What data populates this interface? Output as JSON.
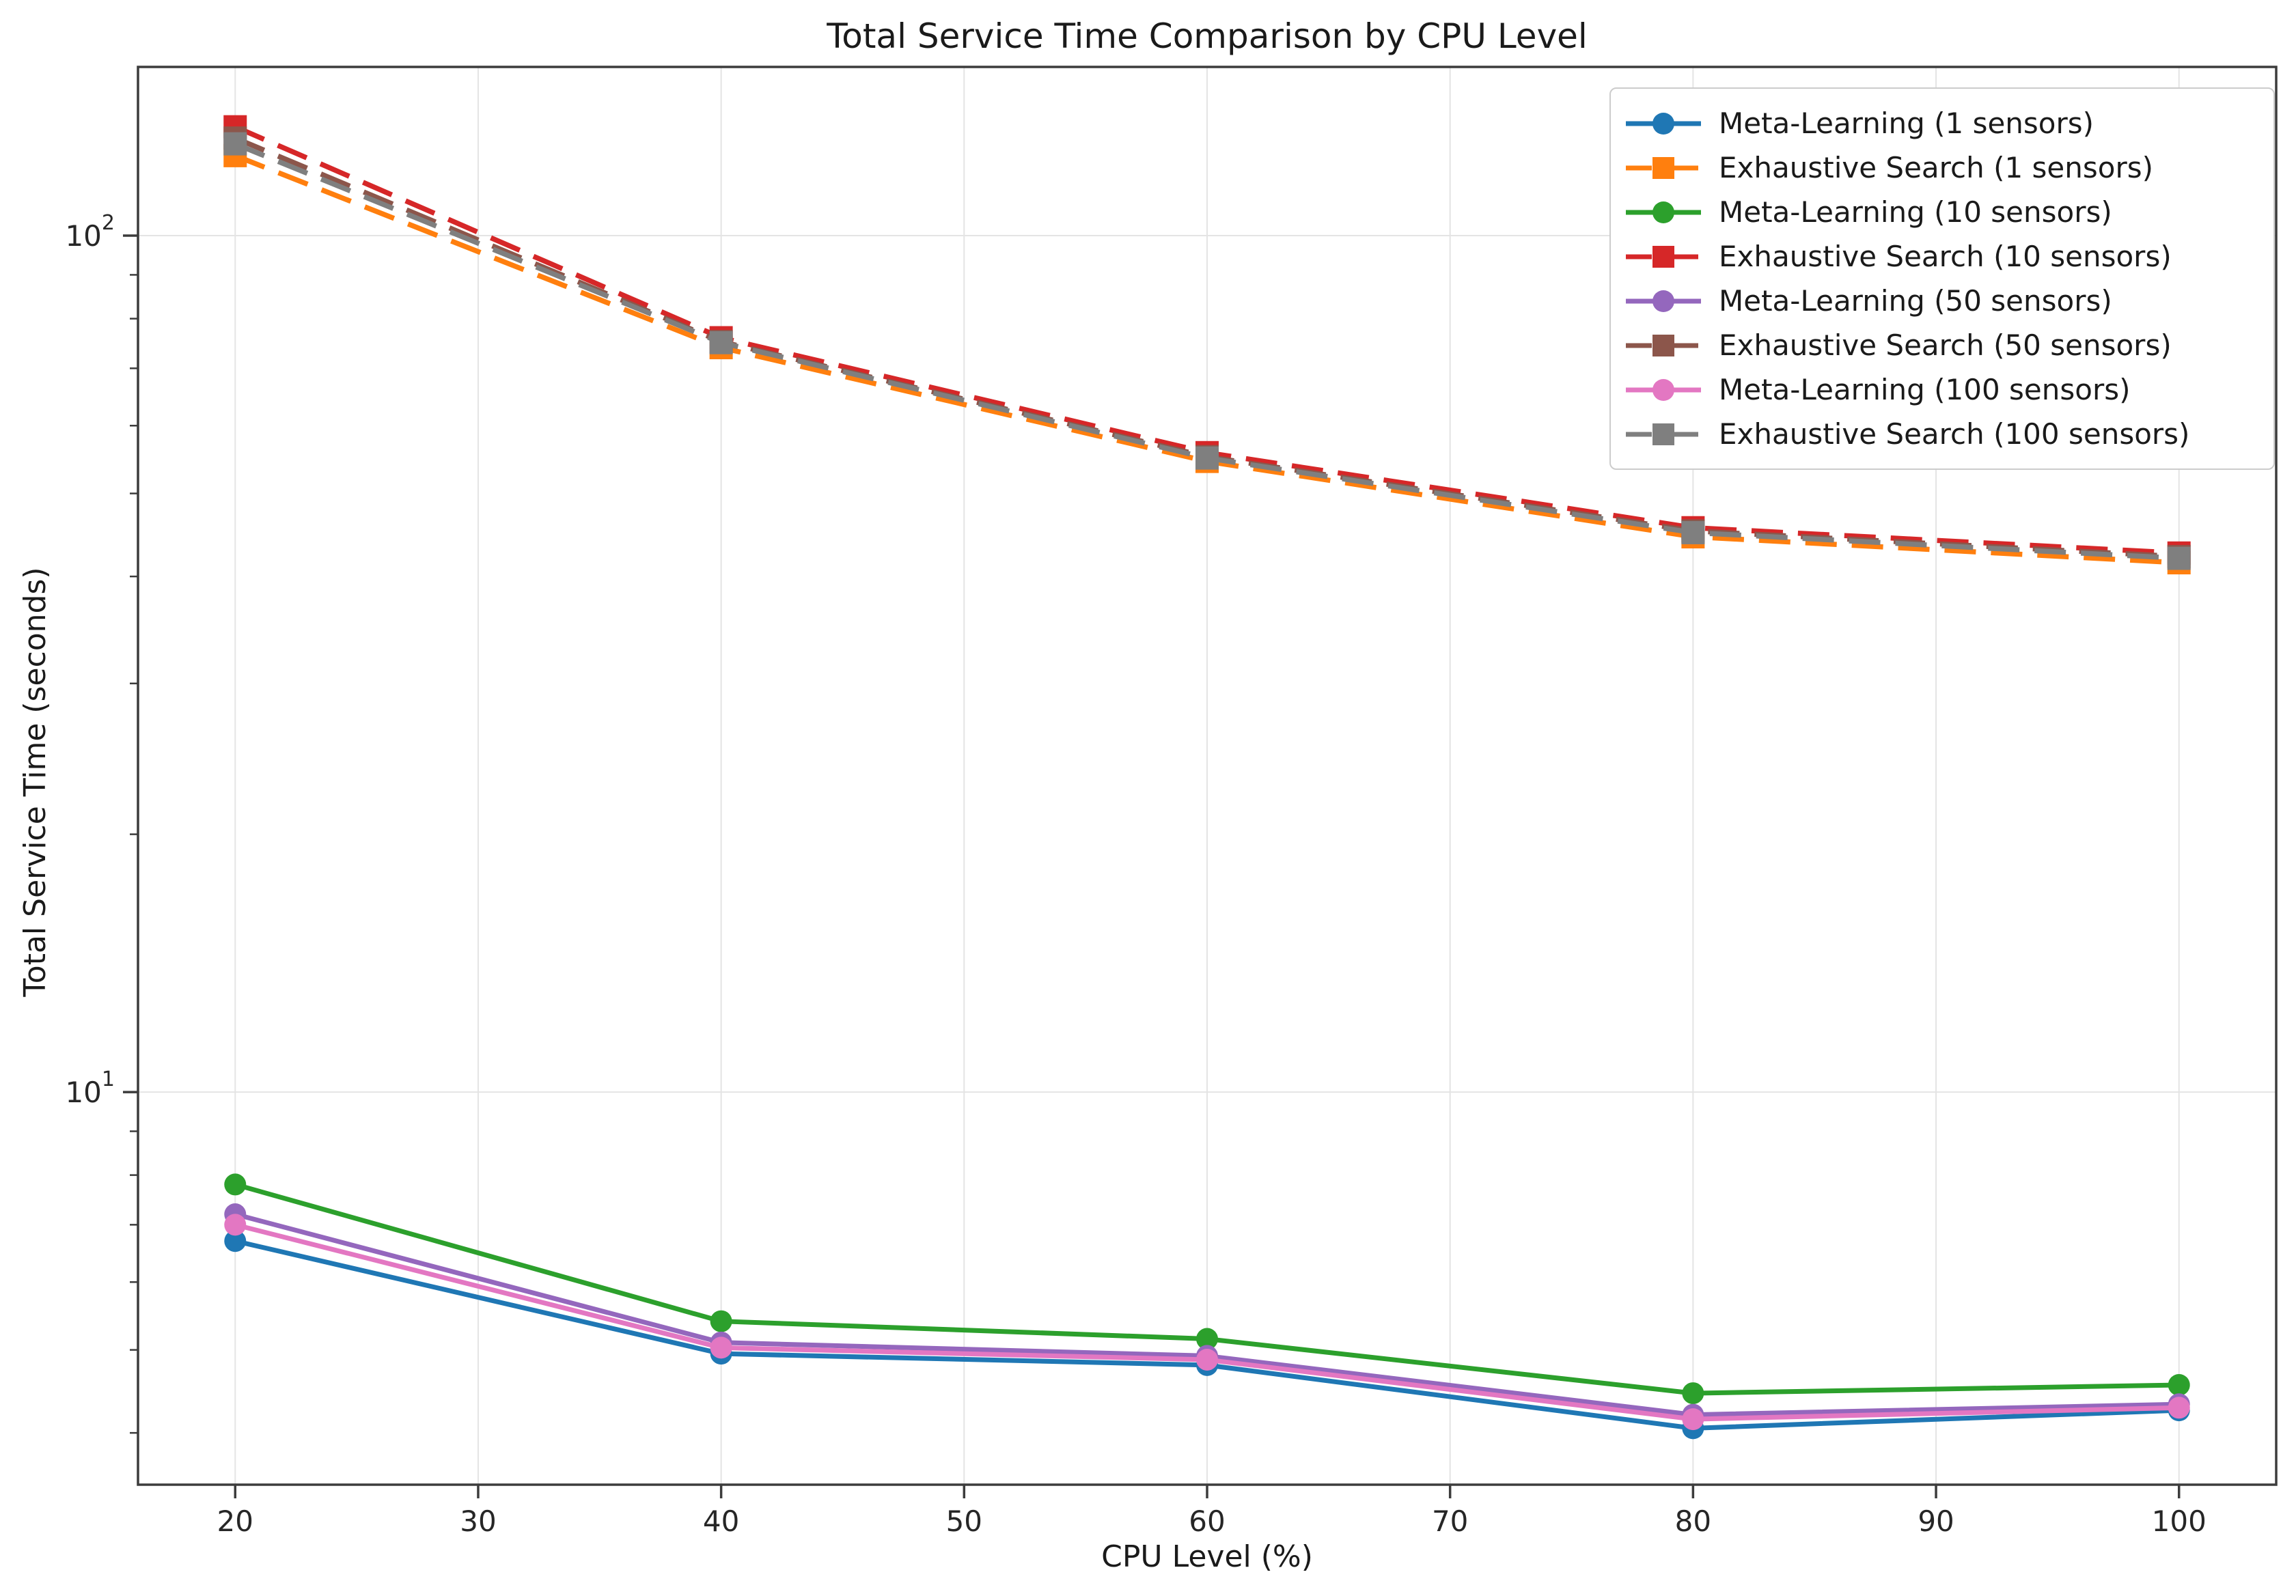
{
  "figure": {
    "kind": "matplotlib-style line chart",
    "background": "#ffffff"
  },
  "chart_data": {
    "type": "line",
    "title": "Total Service Time Comparison by CPU Level",
    "xlabel": "CPU Level (%)",
    "ylabel": "Total Service Time (seconds)",
    "x": [
      20,
      40,
      60,
      80,
      100
    ],
    "x_ticks": [
      20,
      30,
      40,
      50,
      60,
      70,
      80,
      90,
      100
    ],
    "y_scale": "log",
    "y_ticks": [
      {
        "value": 10,
        "base": "10",
        "exponent": "1"
      },
      {
        "value": 100,
        "base": "10",
        "exponent": "2"
      }
    ],
    "xlim": [
      16,
      104
    ],
    "ylim": [
      3.48,
      157.4
    ],
    "grid": true,
    "grid_color": "#e4e4e4",
    "spine_color": "#3c3c3c",
    "legend_position": "upper right",
    "series": [
      {
        "name": "Meta-Learning (1 sensors)",
        "color": "#1f77b4",
        "line_style": "solid",
        "marker": "circle",
        "values": [
          6.7,
          4.95,
          4.8,
          4.05,
          4.25
        ]
      },
      {
        "name": "Exhaustive Search (1 sensors)",
        "color": "#ff7f0e",
        "line_style": "dashed",
        "marker": "square",
        "values": [
          124,
          74.0,
          54.5,
          44.5,
          41.5
        ]
      },
      {
        "name": "Meta-Learning (10 sensors)",
        "color": "#2ca02c",
        "line_style": "solid",
        "marker": "circle",
        "values": [
          7.8,
          5.4,
          5.15,
          4.45,
          4.55
        ]
      },
      {
        "name": "Exhaustive Search (10 sensors)",
        "color": "#d62728",
        "line_style": "dashed",
        "marker": "square",
        "values": [
          134,
          76.0,
          55.8,
          45.6,
          42.6
        ]
      },
      {
        "name": "Meta-Learning (50 sensors)",
        "color": "#9467bd",
        "line_style": "solid",
        "marker": "circle",
        "values": [
          7.2,
          5.1,
          4.92,
          4.2,
          4.32
        ]
      },
      {
        "name": "Exhaustive Search (50 sensors)",
        "color": "#8c564b",
        "line_style": "dashed",
        "marker": "square",
        "values": [
          130,
          75.2,
          55.2,
          45.2,
          42.2
        ]
      },
      {
        "name": "Meta-Learning (100 sensors)",
        "color": "#e377c2",
        "line_style": "solid",
        "marker": "circle",
        "values": [
          7.0,
          5.03,
          4.87,
          4.15,
          4.28
        ]
      },
      {
        "name": "Exhaustive Search (100 sensors)",
        "color": "#7f7f7f",
        "line_style": "dashed",
        "marker": "square",
        "values": [
          128,
          75.0,
          55.0,
          45.0,
          42.0
        ]
      }
    ]
  }
}
